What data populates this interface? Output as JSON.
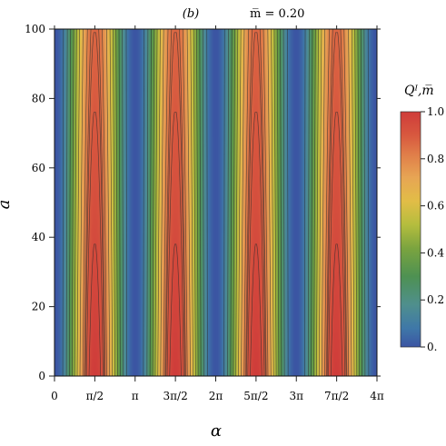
{
  "panel_label": "(b)",
  "subtitle": "m̅ = 0.20",
  "chart_data": {
    "type": "heatmap",
    "title": "(b)     m̅ = 0.20",
    "xlabel": "α",
    "ylabel": "a̅",
    "colorbar_label": "Qᴵ,m̅",
    "xlim": [
      0,
      4
    ],
    "x_unit": "π",
    "ylim": [
      0,
      100
    ],
    "x_ticks": [
      {
        "value": 0,
        "label": "0"
      },
      {
        "value": 0.5,
        "label": "π/2"
      },
      {
        "value": 1,
        "label": "π"
      },
      {
        "value": 1.5,
        "label": "3π/2"
      },
      {
        "value": 2,
        "label": "2π"
      },
      {
        "value": 2.5,
        "label": "5π/2"
      },
      {
        "value": 3,
        "label": "3π"
      },
      {
        "value": 3.5,
        "label": "7π/2"
      },
      {
        "value": 4,
        "label": "4π"
      }
    ],
    "y_ticks": [
      0,
      20,
      40,
      60,
      80,
      100
    ],
    "colorbar": {
      "min": 0,
      "max": 1,
      "ticks": [
        {
          "value": 0,
          "label": "0."
        },
        {
          "value": 0.2,
          "label": "0.2"
        },
        {
          "value": 0.4,
          "label": "0.4"
        },
        {
          "value": 0.6,
          "label": "0.6"
        },
        {
          "value": 0.8,
          "label": "0.8"
        },
        {
          "value": 1.0,
          "label": "1.0"
        }
      ],
      "stops": [
        {
          "value": 0.0,
          "color": "#3b55a3"
        },
        {
          "value": 0.08,
          "color": "#3f78a8"
        },
        {
          "value": 0.18,
          "color": "#4f8f8d"
        },
        {
          "value": 0.3,
          "color": "#4e9152"
        },
        {
          "value": 0.42,
          "color": "#7ba43f"
        },
        {
          "value": 0.52,
          "color": "#b5bd3e"
        },
        {
          "value": 0.62,
          "color": "#e2bd47"
        },
        {
          "value": 0.72,
          "color": "#e7a554"
        },
        {
          "value": 0.82,
          "color": "#e07d49"
        },
        {
          "value": 0.9,
          "color": "#d8583f"
        },
        {
          "value": 1.0,
          "color": "#cf3c3a"
        }
      ]
    },
    "function": {
      "expression": "Q(α, a̅) = sin²(α) · (1 − 0.13 · a̅/100)",
      "periodicity": "π in α",
      "max_value_at": "α = π/2 + kπ, a̅ = 0",
      "min_value_at": "α = kπ"
    },
    "contours": [
      0.1,
      0.2,
      0.3,
      0.4,
      0.5,
      0.6,
      0.7,
      0.8,
      0.85,
      0.87,
      0.9,
      0.95
    ],
    "legend": "colorbar right"
  }
}
